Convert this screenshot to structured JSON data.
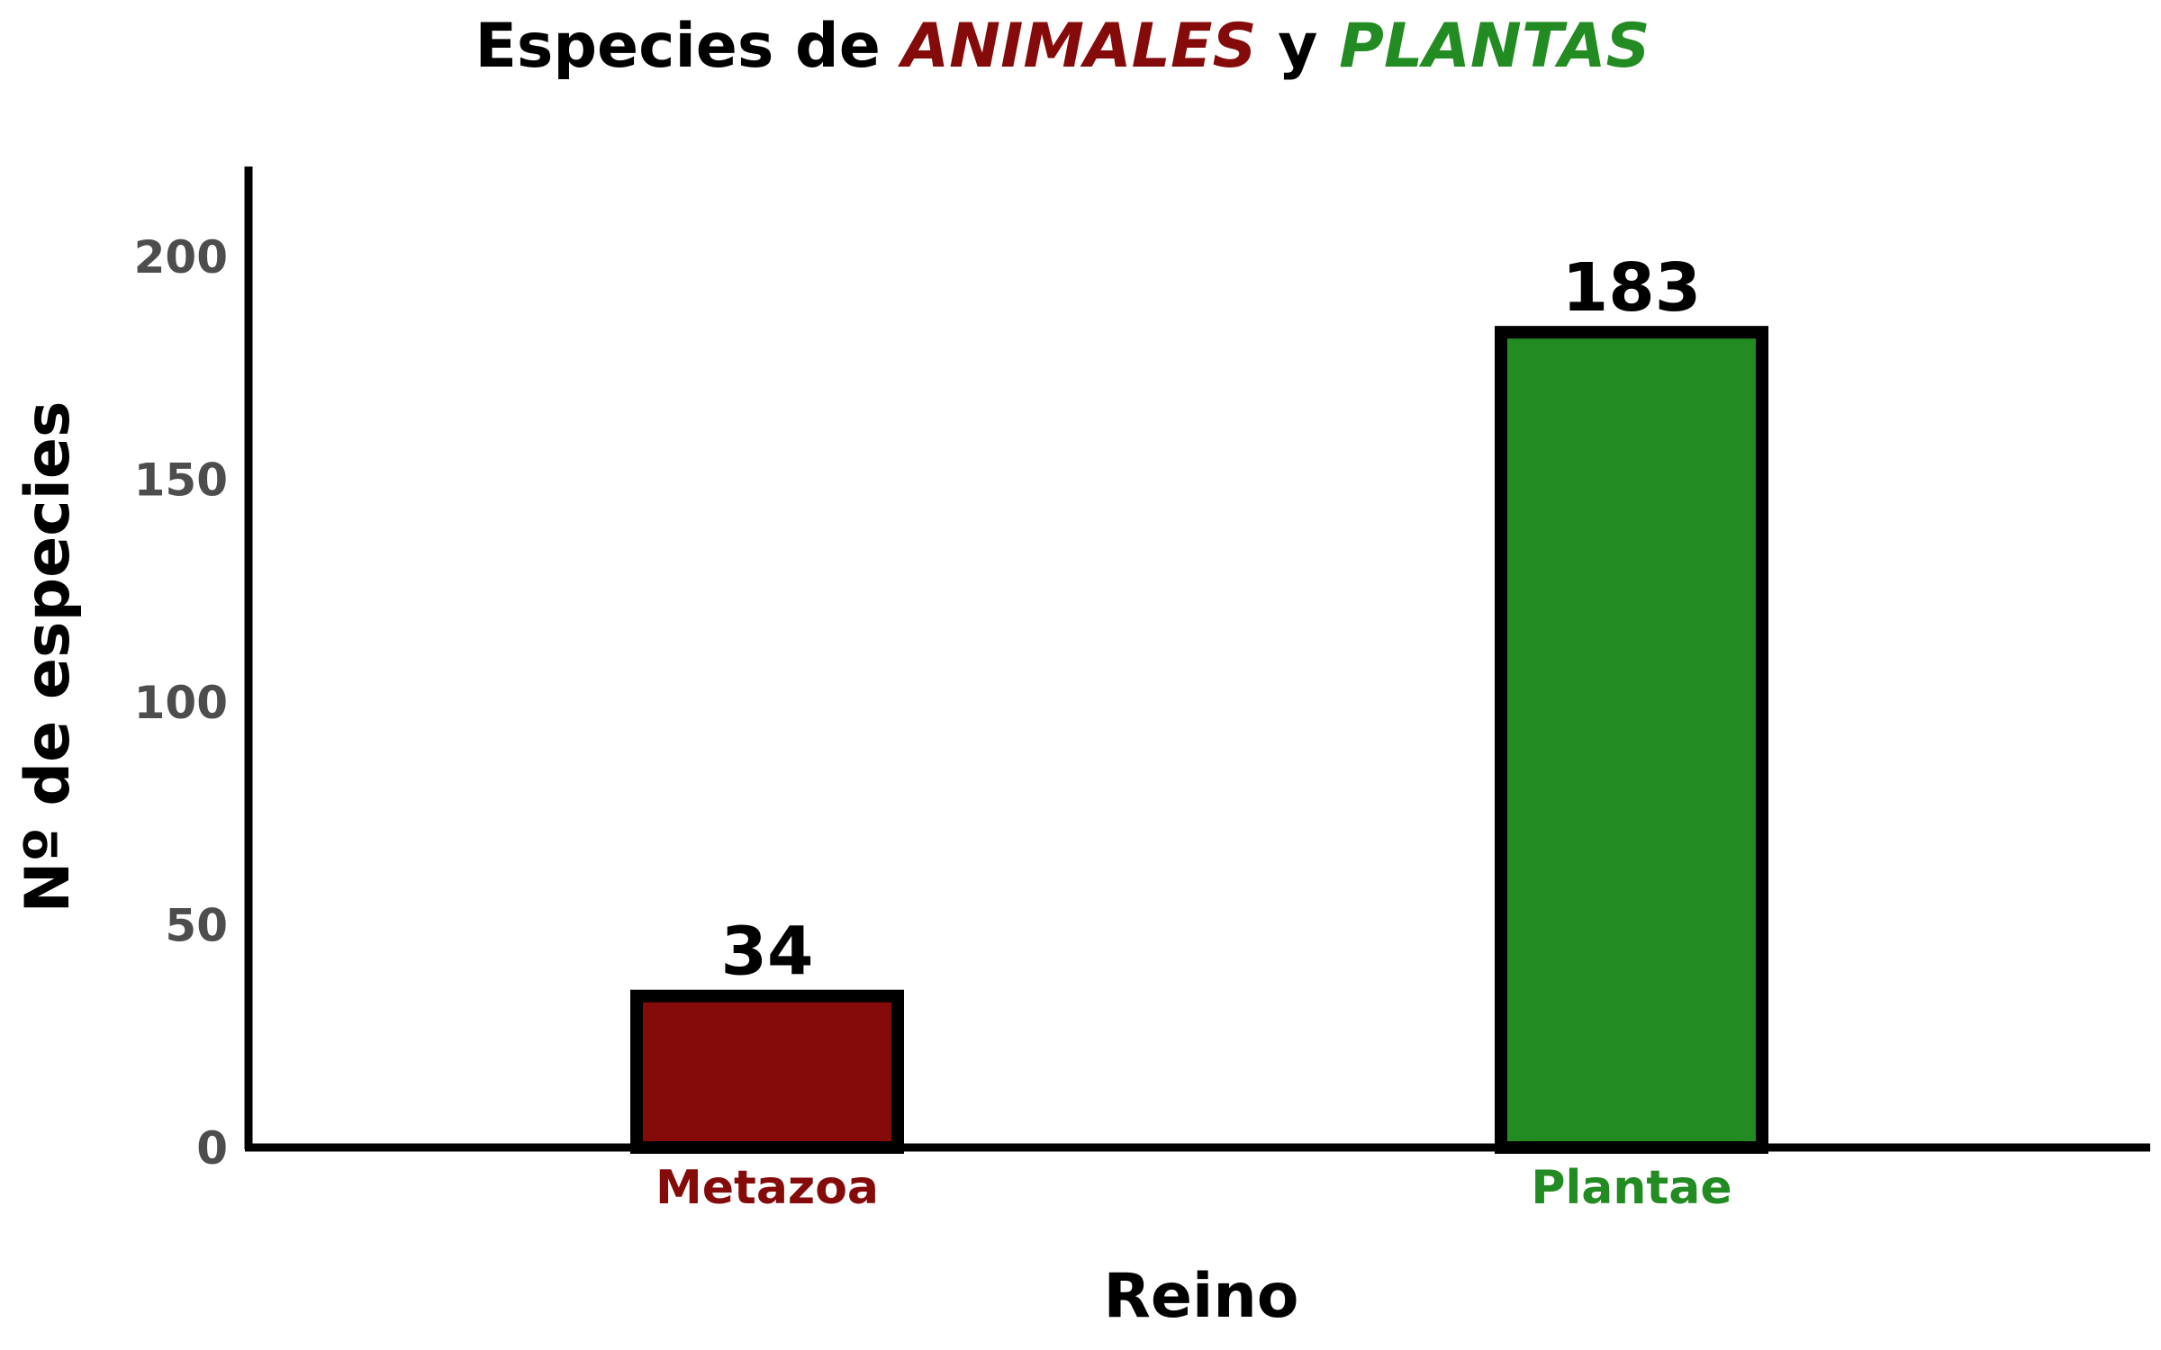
{
  "chart_data": {
    "type": "bar",
    "title": {
      "prefix": "Especies de ",
      "animals": "ANIMALES",
      "middle": " y ",
      "plants": "PLANTAS"
    },
    "xlabel": "Reino",
    "ylabel": "Nº de especies",
    "categories": [
      "Metazoa",
      "Plantae"
    ],
    "values": [
      34,
      183
    ],
    "data_labels": [
      "34",
      "183"
    ],
    "bar_colors": [
      "#850a0a",
      "#228b22"
    ],
    "category_label_colors": [
      "#850a0a",
      "#228b22"
    ],
    "ylim": [
      0,
      220
    ],
    "yticks": [
      0,
      50,
      100,
      150,
      200
    ],
    "ytick_labels": [
      "0",
      "50",
      "100",
      "150",
      "200"
    ],
    "grid": false,
    "legend": "none"
  },
  "colors": {
    "animals": "#850a0a",
    "plants": "#228b22",
    "axis": "#000000",
    "tick_text": "#4d4d4d"
  }
}
